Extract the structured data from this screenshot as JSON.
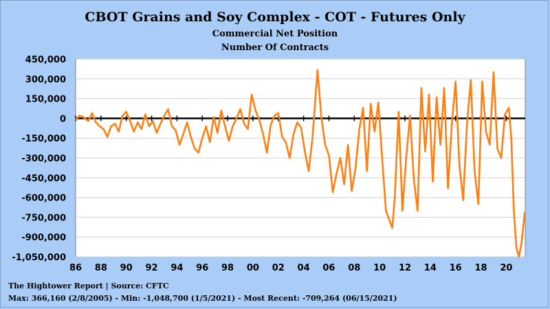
{
  "chart_data": {
    "type": "line",
    "title": "CBOT Grains and Soy Complex - COT - Futures Only",
    "subtitle": "Commercial Net Position",
    "subtitle2": "Number Of Contracts",
    "xlabel": "",
    "ylabel": "",
    "xlim": [
      1986,
      2021.5
    ],
    "ylim": [
      -1050000,
      450000
    ],
    "y_ticks": [
      450000,
      300000,
      150000,
      0,
      -150000,
      -300000,
      -450000,
      -600000,
      -750000,
      -900000,
      -1050000
    ],
    "y_tick_labels": [
      "450,000",
      "300,000",
      "150,000",
      "0",
      "-150,000",
      "-300,000",
      "-450,000",
      "-600,000",
      "-750,000",
      "-900,000",
      "-1,050,000"
    ],
    "x_ticks": [
      1986,
      1988,
      1990,
      1992,
      1994,
      1996,
      1998,
      2000,
      2002,
      2004,
      2006,
      2008,
      2010,
      2012,
      2014,
      2016,
      2018,
      2020
    ],
    "x_tick_labels": [
      "86",
      "88",
      "90",
      "92",
      "94",
      "96",
      "98",
      "00",
      "02",
      "04",
      "06",
      "08",
      "10",
      "12",
      "14",
      "16",
      "18",
      "20"
    ],
    "grid": "horizontal",
    "series": [
      {
        "color": "#ff7f10",
        "x": [
          1986.0,
          1986.3,
          1986.6,
          1987.0,
          1987.3,
          1987.6,
          1987.9,
          1988.2,
          1988.5,
          1988.8,
          1989.1,
          1989.4,
          1989.7,
          1990.0,
          1990.3,
          1990.6,
          1990.9,
          1991.2,
          1991.5,
          1991.8,
          1992.1,
          1992.4,
          1992.7,
          1993.0,
          1993.3,
          1993.6,
          1993.9,
          1994.2,
          1994.5,
          1994.8,
          1995.1,
          1995.4,
          1995.7,
          1996.0,
          1996.3,
          1996.6,
          1996.9,
          1997.2,
          1997.5,
          1997.8,
          1998.1,
          1998.4,
          1998.7,
          1999.0,
          1999.3,
          1999.6,
          1999.9,
          2000.2,
          2000.5,
          2000.8,
          2001.1,
          2001.4,
          2001.7,
          2002.0,
          2002.3,
          2002.6,
          2002.9,
          2003.2,
          2003.5,
          2003.8,
          2004.1,
          2004.4,
          2004.7,
          2005.0,
          2005.1,
          2005.4,
          2005.7,
          2006.0,
          2006.3,
          2006.6,
          2006.9,
          2007.2,
          2007.5,
          2007.8,
          2008.1,
          2008.4,
          2008.7,
          2009.0,
          2009.3,
          2009.6,
          2009.9,
          2010.2,
          2010.5,
          2010.8,
          2011.0,
          2011.2,
          2011.5,
          2011.8,
          2012.1,
          2012.4,
          2012.7,
          2013.0,
          2013.3,
          2013.6,
          2013.9,
          2014.2,
          2014.5,
          2014.8,
          2015.1,
          2015.4,
          2015.7,
          2016.0,
          2016.3,
          2016.6,
          2016.9,
          2017.2,
          2017.5,
          2017.8,
          2018.1,
          2018.4,
          2018.7,
          2019.0,
          2019.3,
          2019.6,
          2019.9,
          2020.2,
          2020.4,
          2020.6,
          2020.8,
          2021.0,
          2021.2,
          2021.46
        ],
        "y": [
          -10000,
          20000,
          10000,
          -20000,
          40000,
          -30000,
          -60000,
          -80000,
          -140000,
          -60000,
          -40000,
          -100000,
          20000,
          50000,
          -20000,
          -100000,
          -30000,
          -80000,
          30000,
          -60000,
          -20000,
          -110000,
          -40000,
          20000,
          70000,
          -60000,
          -90000,
          -200000,
          -120000,
          -30000,
          -140000,
          -230000,
          -260000,
          -150000,
          -60000,
          -180000,
          10000,
          -110000,
          60000,
          -60000,
          -170000,
          -60000,
          0,
          70000,
          -40000,
          -80000,
          180000,
          60000,
          -10000,
          -120000,
          -260000,
          -50000,
          20000,
          40000,
          -140000,
          -180000,
          -300000,
          -120000,
          -30000,
          -70000,
          -250000,
          -400000,
          -150000,
          240000,
          366160,
          10000,
          -200000,
          -280000,
          -560000,
          -420000,
          -300000,
          -500000,
          -200000,
          -550000,
          -380000,
          -80000,
          80000,
          -400000,
          110000,
          -100000,
          120000,
          -300000,
          -700000,
          -780000,
          -830000,
          -600000,
          50000,
          -700000,
          -300000,
          20000,
          -460000,
          -700000,
          230000,
          -250000,
          180000,
          -480000,
          160000,
          -200000,
          230000,
          -530000,
          -50000,
          280000,
          -350000,
          -620000,
          -40000,
          290000,
          -400000,
          -650000,
          280000,
          -100000,
          -200000,
          350000,
          -230000,
          -300000,
          30000,
          80000,
          -150000,
          -700000,
          -980000,
          -1048700,
          -950000,
          -709264
        ]
      }
    ],
    "footer_source": "The Hightower Report | Source: CFTC",
    "footer_stats": "Max: 366,160 (2/8/2005)  -  Min: -1,048,700 (1/5/2021) - Most Recent: -709,264 (06/15/2021)"
  }
}
